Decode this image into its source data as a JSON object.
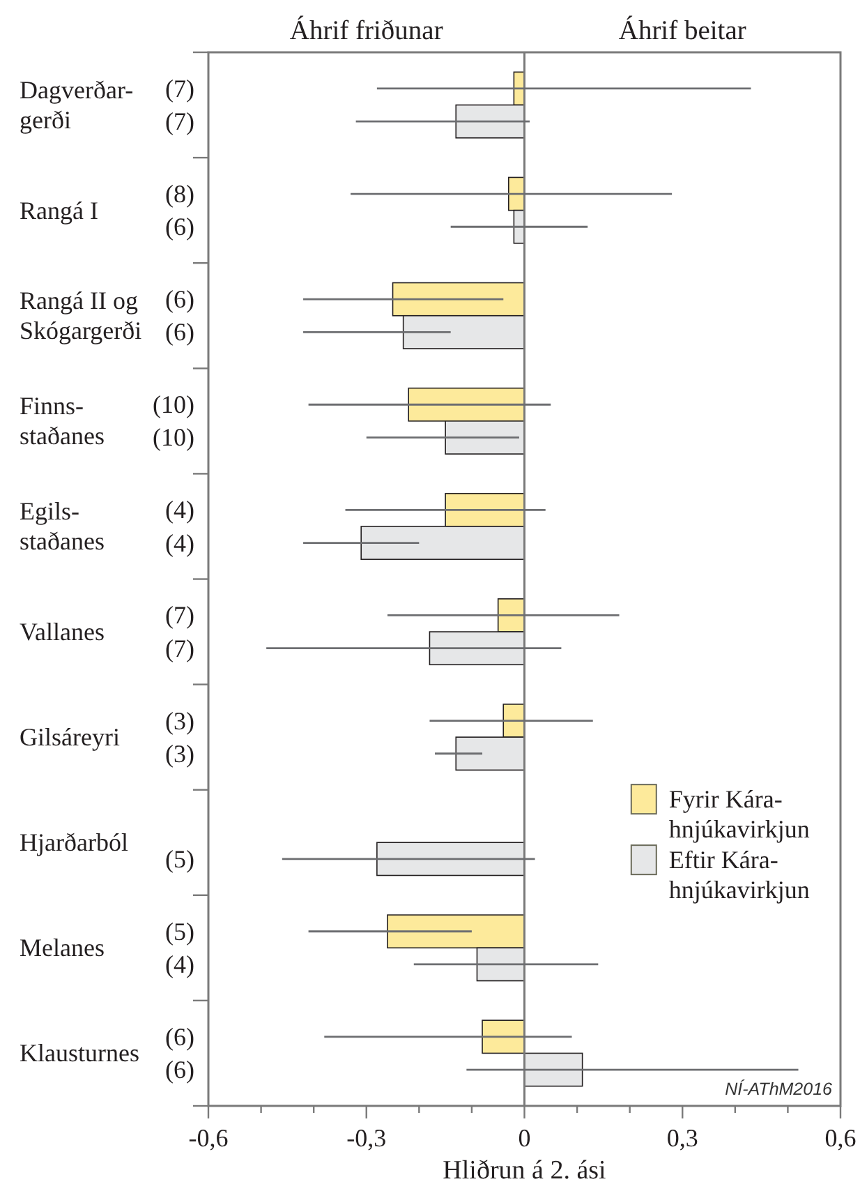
{
  "chart_data": {
    "type": "bar",
    "orientation": "horizontal",
    "xlabel": "Hliðrun á 2. ási",
    "categories": [
      "Dagverðar-\ngerði",
      "Rangá I",
      "Rangá II og\nSkógargerði",
      "Finns-\nstaðanes",
      "Egils-\nstaðanes",
      "Vallanes",
      "Gilsáreyri",
      "Hjarðarból",
      "Melanes",
      "Klausturnes"
    ],
    "series": [
      {
        "name": "Fyrir Kára-\nhnjúkavirkjun",
        "color": "#fdea9b",
        "values": [
          -0.02,
          -0.03,
          -0.25,
          -0.22,
          -0.15,
          -0.05,
          -0.04,
          null,
          -0.26,
          -0.08
        ],
        "errors": [
          [
            -0.28,
            0.43
          ],
          [
            -0.33,
            0.28
          ],
          [
            -0.42,
            -0.04
          ],
          [
            -0.41,
            0.05
          ],
          [
            -0.34,
            0.04
          ],
          [
            -0.26,
            0.18
          ],
          [
            -0.18,
            0.13
          ],
          null,
          [
            -0.41,
            -0.1
          ],
          [
            -0.38,
            0.09
          ]
        ]
      },
      {
        "name": "Eftir Kára-\nhnjúkavirkjun",
        "color": "#e6e7e8",
        "values": [
          -0.13,
          -0.02,
          -0.23,
          -0.15,
          -0.31,
          -0.18,
          -0.13,
          -0.28,
          -0.09,
          0.11
        ],
        "errors": [
          [
            -0.32,
            0.01
          ],
          [
            -0.14,
            0.12
          ],
          [
            -0.42,
            -0.14
          ],
          [
            -0.3,
            -0.01
          ],
          [
            -0.42,
            -0.2
          ],
          [
            -0.49,
            0.07
          ],
          [
            -0.17,
            -0.08
          ],
          [
            -0.46,
            0.02
          ],
          [
            -0.21,
            0.14
          ],
          [
            -0.11,
            0.52
          ]
        ]
      }
    ],
    "xlim": [
      -0.6,
      0.6
    ],
    "xticks": [
      {
        "value": -0.6,
        "label": "-0,6"
      },
      {
        "value": -0.5,
        "label": null
      },
      {
        "value": -0.4,
        "label": null
      },
      {
        "value": -0.3,
        "label": "-0,3"
      },
      {
        "value": -0.2,
        "label": null
      },
      {
        "value": -0.1,
        "label": null
      },
      0,
      {
        "value": 0.1,
        "label": null
      },
      {
        "value": 0.2,
        "label": null
      },
      {
        "value": 0.3,
        "label": "0,3"
      },
      {
        "value": 0.4,
        "label": null
      },
      {
        "value": 0.5,
        "label": null
      },
      {
        "value": 0.6,
        "label": "0,6"
      }
    ],
    "legend": "bottom right",
    "annotations": [
      "Áhrif friðunar",
      "Áhrif beitar",
      "(7)",
      "(7)",
      "(8)",
      "(6)",
      "(6)",
      "(6)",
      "(10)",
      "(10)",
      "(4)",
      "(4)",
      "(7)",
      "(7)",
      "(3)",
      "(3)",
      "(5)",
      "(5)",
      "(4)",
      "(6)",
      "(6)",
      "NÍ-AThM2016"
    ]
  }
}
